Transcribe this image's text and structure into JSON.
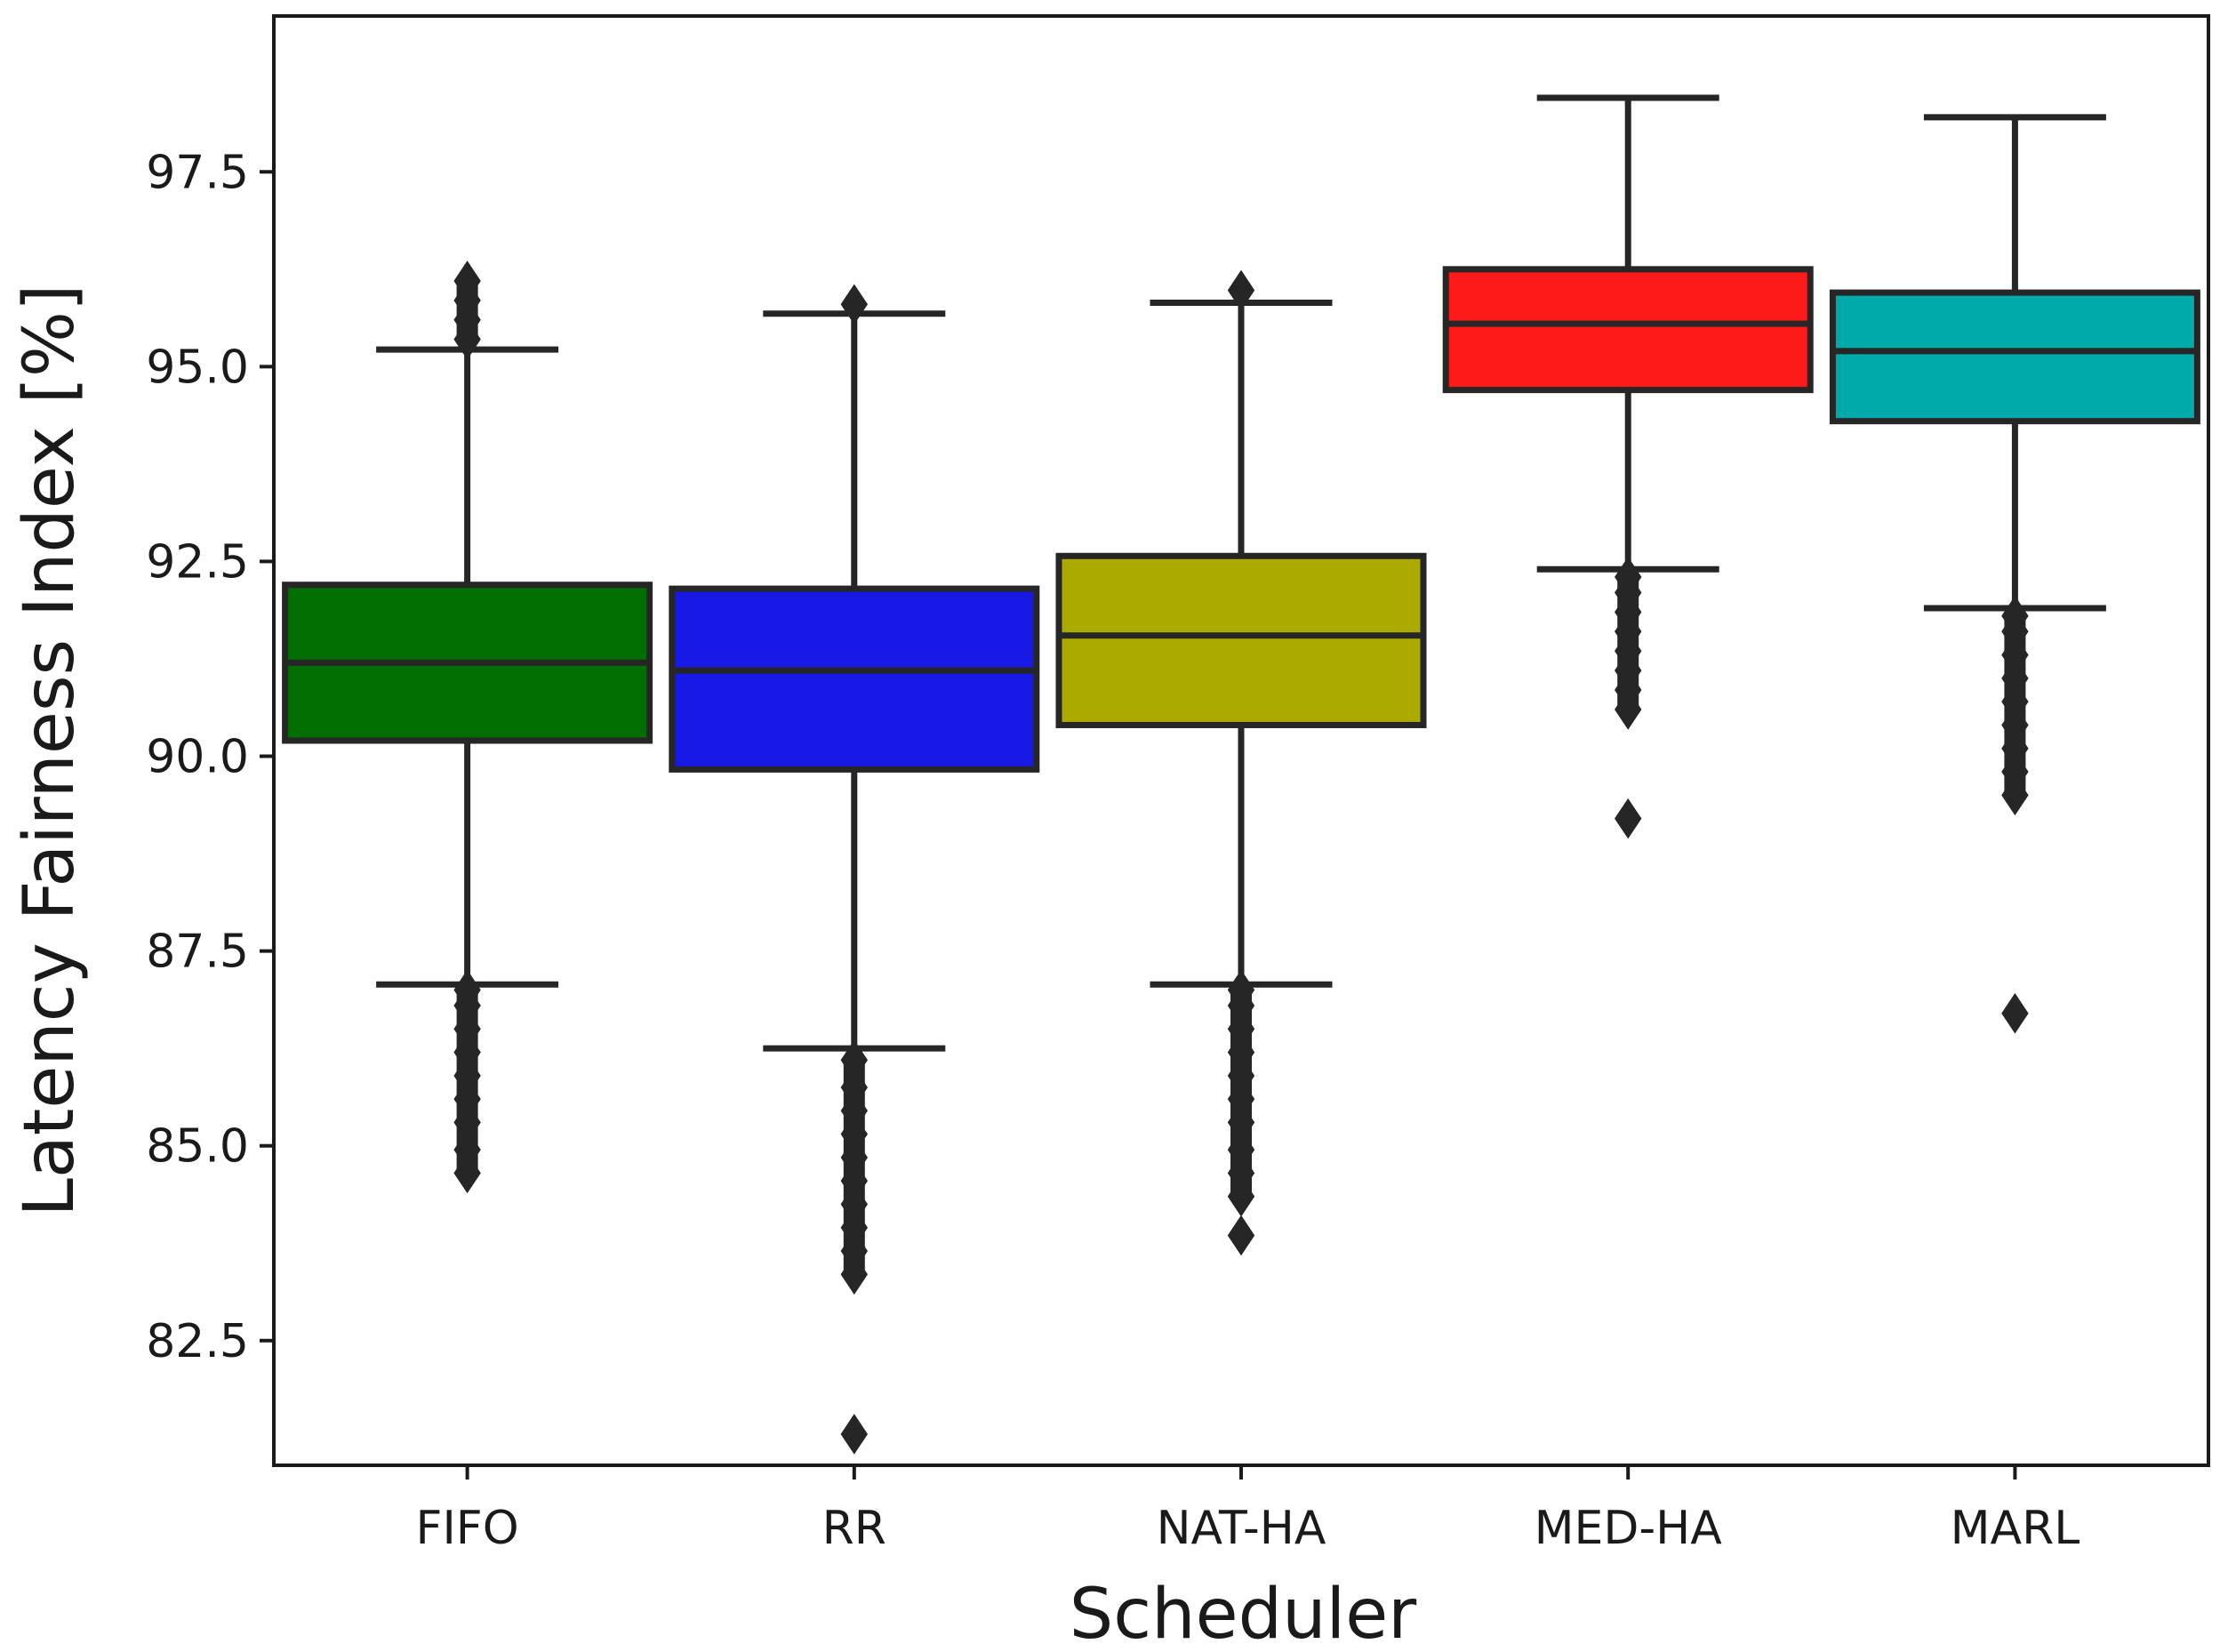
{
  "chart_data": {
    "type": "box",
    "title": "",
    "xlabel": "Scheduler",
    "ylabel": "Latency Fairness Index [%]",
    "ylim": [
      80.9,
      99.5
    ],
    "yticks": [
      82.5,
      85.0,
      87.5,
      90.0,
      92.5,
      95.0,
      97.5
    ],
    "ytick_labels": [
      "82.5",
      "85.0",
      "87.5",
      "90.0",
      "92.5",
      "95.0",
      "97.5"
    ],
    "categories": [
      "FIFO",
      "RR",
      "NAT-HA",
      "MED-HA",
      "MARL"
    ],
    "series": [
      {
        "name": "FIFO",
        "color": "#006e00",
        "whisker_low": 87.07,
        "q1": 90.2,
        "median": 91.2,
        "q3": 92.2,
        "whisker_high": 95.22,
        "outliers_low": [
          84.65,
          84.95,
          85.3,
          85.6,
          85.9,
          86.2,
          86.5,
          86.8,
          87.0
        ],
        "outliers_high": [
          95.35,
          95.6,
          95.85,
          96.1
        ]
      },
      {
        "name": "RR",
        "color": "#1919e6",
        "whisker_low": 86.25,
        "q1": 89.83,
        "median": 91.1,
        "q3": 92.15,
        "whisker_high": 95.68,
        "outliers_low": [
          81.3,
          83.35,
          83.65,
          83.95,
          84.25,
          84.55,
          84.85,
          85.15,
          85.45,
          85.75,
          86.1
        ],
        "outliers_high": [
          95.8
        ]
      },
      {
        "name": "NAT-HA",
        "color": "#aaaa00",
        "whisker_low": 87.07,
        "q1": 90.4,
        "median": 91.55,
        "q3": 92.57,
        "whisker_high": 95.82,
        "outliers_low": [
          83.85,
          84.35,
          84.65,
          84.95,
          85.3,
          85.6,
          85.9,
          86.2,
          86.5,
          86.8,
          87.0
        ],
        "outliers_high": [
          95.98
        ]
      },
      {
        "name": "MED-HA",
        "color": "#ff1a1a",
        "whisker_low": 92.4,
        "q1": 94.7,
        "median": 95.55,
        "q3": 96.25,
        "whisker_high": 98.45,
        "outliers_low": [
          89.2,
          90.6,
          90.85,
          91.1,
          91.35,
          91.6,
          91.85,
          92.1,
          92.3
        ],
        "outliers_high": []
      },
      {
        "name": "MARL",
        "color": "#00aaaa",
        "whisker_low": 91.9,
        "q1": 94.3,
        "median": 95.2,
        "q3": 95.95,
        "whisker_high": 98.2,
        "outliers_low": [
          86.7,
          89.5,
          89.8,
          90.1,
          90.4,
          90.7,
          91.0,
          91.3,
          91.6,
          91.8
        ],
        "outliers_high": []
      }
    ]
  }
}
